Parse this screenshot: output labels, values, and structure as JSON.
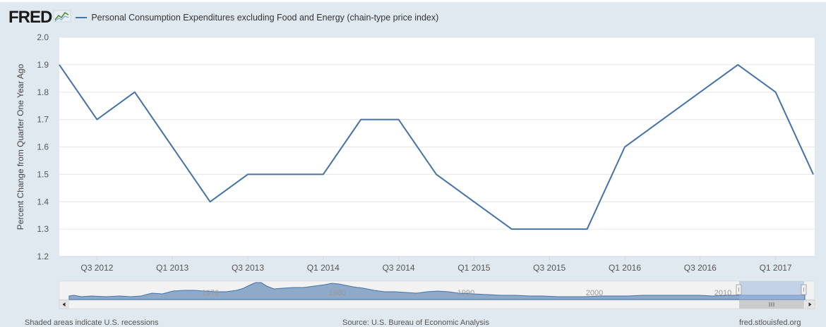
{
  "brand": {
    "logo_text": "FRED",
    "logo_icon": "chart-line-icon"
  },
  "legend": {
    "series_label": "Personal Consumption Expenditures excluding Food and Energy (chain-type price index)",
    "color": "#4572a7"
  },
  "footer": {
    "left": "Shaded areas indicate U.S. recessions",
    "center": "Source: U.S. Bureau of Economic Analysis",
    "right": "fred.stlouisfed.org"
  },
  "navigator": {
    "labels": [
      "1970",
      "1980",
      "1990",
      "2000",
      "2010"
    ]
  },
  "chart_data": {
    "type": "line",
    "title": "",
    "xlabel": "",
    "ylabel": "Percent Change from Quarter One Year Ago",
    "ylim": [
      1.2,
      2.0
    ],
    "yticks": [
      "1.2",
      "1.3",
      "1.4",
      "1.5",
      "1.6",
      "1.7",
      "1.8",
      "1.9",
      "2.0"
    ],
    "xticks": [
      "Q3 2012",
      "Q1 2013",
      "Q3 2013",
      "Q1 2014",
      "Q3 2014",
      "Q1 2015",
      "Q3 2015",
      "Q1 2016",
      "Q3 2016",
      "Q1 2017"
    ],
    "grid": true,
    "series": [
      {
        "name": "Personal Consumption Expenditures excluding Food and Energy (chain-type price index)",
        "color": "#4572a7",
        "x": [
          "Q2 2012",
          "Q3 2012",
          "Q4 2012",
          "Q1 2013",
          "Q2 2013",
          "Q3 2013",
          "Q4 2013",
          "Q1 2014",
          "Q2 2014",
          "Q3 2014",
          "Q4 2014",
          "Q1 2015",
          "Q2 2015",
          "Q3 2015",
          "Q4 2015",
          "Q1 2016",
          "Q2 2016",
          "Q3 2016",
          "Q4 2016",
          "Q1 2017",
          "Q2 2017"
        ],
        "values": [
          1.9,
          1.7,
          1.8,
          1.6,
          1.4,
          1.5,
          1.5,
          1.5,
          1.7,
          1.7,
          1.5,
          1.4,
          1.3,
          1.3,
          1.3,
          1.6,
          1.7,
          1.8,
          1.9,
          1.8,
          1.5
        ]
      }
    ]
  }
}
